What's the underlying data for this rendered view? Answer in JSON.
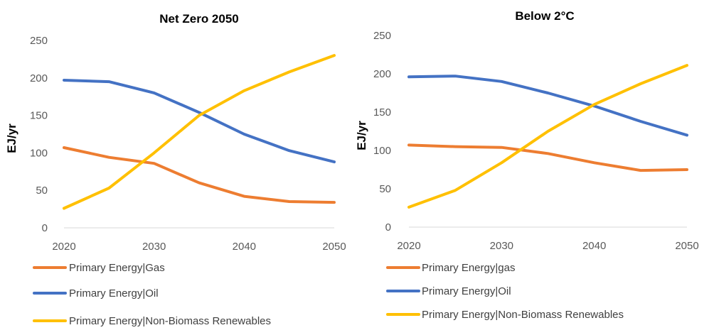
{
  "chart_data": [
    {
      "type": "line",
      "title": "Net Zero 2050",
      "ylabel": "EJ/yr",
      "xlabel": "",
      "x": [
        2020,
        2025,
        2030,
        2035,
        2040,
        2045,
        2050
      ],
      "xticks": [
        2020,
        2030,
        2040,
        2050
      ],
      "xlim": [
        2020,
        2050
      ],
      "yticks": [
        0,
        50,
        100,
        150,
        200,
        250
      ],
      "ylim": [
        0,
        250
      ],
      "grid": false,
      "legend_position": "bottom",
      "series": [
        {
          "name": "Primary Energy|Gas",
          "color": "#ed7d31",
          "values": [
            107,
            94,
            86,
            60,
            42,
            35,
            34
          ]
        },
        {
          "name": "Primary Energy|Oil",
          "color": "#4472c4",
          "values": [
            197,
            195,
            180,
            154,
            125,
            103,
            88
          ]
        },
        {
          "name": "Primary Energy|Non-Biomass Renewables",
          "color": "#ffc000",
          "values": [
            26,
            53,
            100,
            150,
            183,
            208,
            230
          ]
        }
      ]
    },
    {
      "type": "line",
      "title": "Below 2°C",
      "ylabel": "EJ/yr",
      "xlabel": "",
      "x": [
        2020,
        2025,
        2030,
        2035,
        2040,
        2045,
        2050
      ],
      "xticks": [
        2020,
        2030,
        2040,
        2050
      ],
      "xlim": [
        2020,
        2050
      ],
      "yticks": [
        0,
        50,
        100,
        150,
        200,
        250
      ],
      "ylim": [
        0,
        250
      ],
      "grid": false,
      "legend_position": "bottom",
      "series": [
        {
          "name": "Primary Energy|gas",
          "color": "#ed7d31",
          "values": [
            107,
            105,
            104,
            96,
            84,
            74,
            75
          ]
        },
        {
          "name": "Primary Energy|Oil",
          "color": "#4472c4",
          "values": [
            196,
            197,
            190,
            175,
            158,
            138,
            120
          ]
        },
        {
          "name": "Primary Energy|Non-Biomass Renewables",
          "color": "#ffc000",
          "values": [
            26,
            48,
            84,
            125,
            160,
            187,
            211
          ]
        }
      ]
    }
  ]
}
